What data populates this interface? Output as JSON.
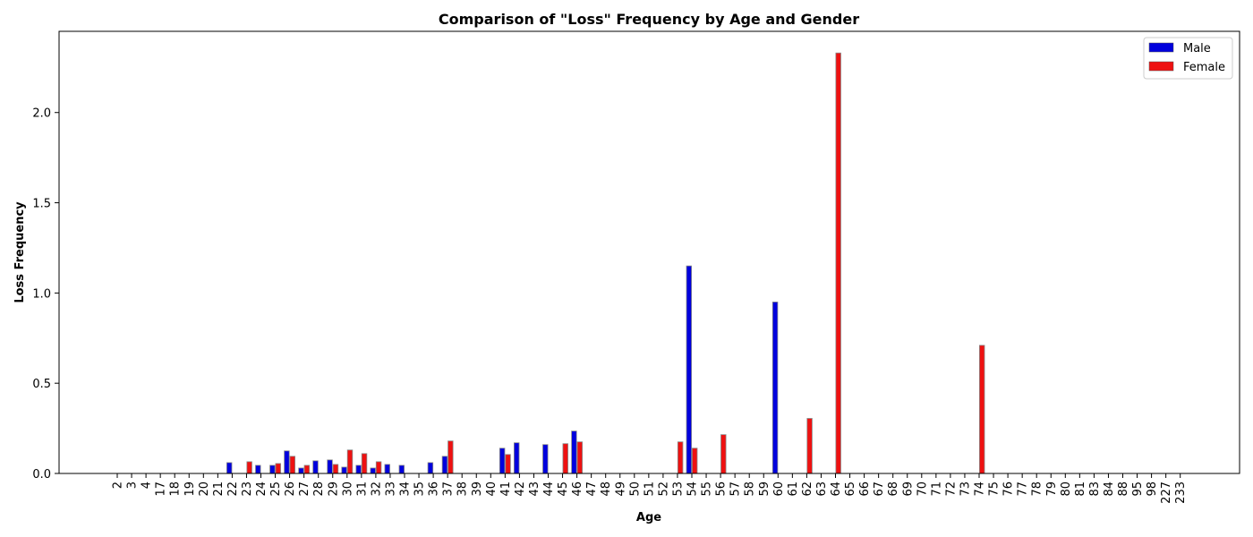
{
  "chart_data": {
    "type": "bar",
    "title": "Comparison of \"Loss\" Frequency by Age and Gender",
    "xlabel": "Age",
    "ylabel": "Loss Frequency",
    "ylim": [
      0,
      2.45
    ],
    "yticks": [
      "0.0",
      "0.5",
      "1.0",
      "1.5",
      "2.0"
    ],
    "grid": false,
    "legend_position": "top-right",
    "categories": [
      "2",
      "3",
      "4",
      "17",
      "18",
      "19",
      "20",
      "21",
      "22",
      "23",
      "24",
      "25",
      "26",
      "27",
      "28",
      "29",
      "30",
      "31",
      "32",
      "33",
      "34",
      "35",
      "36",
      "37",
      "38",
      "39",
      "40",
      "41",
      "42",
      "43",
      "44",
      "45",
      "46",
      "47",
      "48",
      "49",
      "50",
      "51",
      "52",
      "53",
      "54",
      "55",
      "56",
      "57",
      "58",
      "59",
      "60",
      "61",
      "62",
      "63",
      "64",
      "65",
      "66",
      "67",
      "68",
      "69",
      "70",
      "71",
      "72",
      "73",
      "74",
      "75",
      "76",
      "77",
      "78",
      "79",
      "80",
      "81",
      "83",
      "84",
      "88",
      "95",
      "98",
      "227",
      "233"
    ],
    "series": [
      {
        "name": "Male",
        "color": "#0000dd",
        "values": [
          0,
          0,
          0,
          0,
          0,
          0,
          0,
          0,
          0.06,
          0,
          0.045,
          0.045,
          0.125,
          0.03,
          0.07,
          0.075,
          0.035,
          0.045,
          0.03,
          0.05,
          0.045,
          0,
          0.06,
          0.095,
          0,
          0,
          0,
          0.14,
          0.17,
          0,
          0.16,
          0,
          0.235,
          0,
          0,
          0,
          0,
          0,
          0,
          0,
          1.15,
          0,
          0,
          0,
          0,
          0,
          0.95,
          0,
          0,
          0,
          0,
          0,
          0,
          0,
          0,
          0,
          0,
          0,
          0,
          0,
          0,
          0,
          0,
          0,
          0,
          0,
          0,
          0,
          0,
          0,
          0,
          0,
          0,
          0,
          0
        ]
      },
      {
        "name": "Female",
        "color": "#ee1111",
        "values": [
          0,
          0,
          0,
          0,
          0,
          0,
          0,
          0,
          0,
          0.065,
          0,
          0.055,
          0.095,
          0.045,
          0,
          0.05,
          0.13,
          0.11,
          0.065,
          0,
          0,
          0,
          0,
          0.18,
          0,
          0,
          0,
          0.105,
          0,
          0,
          0,
          0.165,
          0.175,
          0,
          0,
          0,
          0,
          0,
          0,
          0.175,
          0.14,
          0,
          0.215,
          0,
          0,
          0,
          0,
          0,
          0.305,
          0,
          2.33,
          0,
          0,
          0,
          0,
          0,
          0,
          0,
          0,
          0,
          0.71,
          0,
          0,
          0,
          0,
          0,
          0,
          0,
          0,
          0,
          0,
          0,
          0,
          0,
          0
        ]
      }
    ]
  }
}
